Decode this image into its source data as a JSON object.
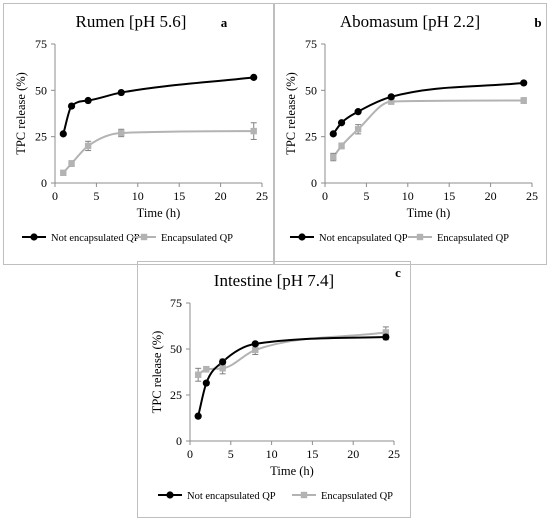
{
  "colors": {
    "not_encapsulated": "#000000",
    "encapsulated": "#b3b3b3",
    "error_bar": "#808080",
    "axis": "#8c8c8c",
    "frame": "#bfbfbf"
  },
  "chart_data": [
    {
      "type": "line",
      "title": "Rumen [pH 5.6]",
      "panel_label": "a",
      "xlabel": "Time (h)",
      "ylabel": "TPC release (%)",
      "xlim": [
        0,
        25
      ],
      "ylim": [
        0,
        75
      ],
      "x_ticks": [
        0,
        5,
        10,
        15,
        20,
        25
      ],
      "y_ticks": [
        0,
        25,
        50,
        75
      ],
      "grid": false,
      "legend_position": "bottom",
      "series": [
        {
          "name": "Not encapsulated QP",
          "x": [
            1,
            2,
            4,
            8,
            24
          ],
          "y": [
            26.5,
            41.5,
            44.5,
            48.8,
            57
          ],
          "error": [
            0,
            0,
            0,
            0,
            0
          ]
        },
        {
          "name": "Encapsulated QP",
          "x": [
            1,
            2,
            4,
            8,
            24
          ],
          "y": [
            5.5,
            10.5,
            20,
            27,
            28
          ],
          "error": [
            0,
            1.5,
            2.5,
            2,
            4.5
          ]
        }
      ]
    },
    {
      "type": "line",
      "title": "Abomasum [pH 2.2]",
      "panel_label": "b",
      "xlabel": "Time (h)",
      "ylabel": "TPC release (%)",
      "xlim": [
        0,
        25
      ],
      "ylim": [
        0,
        75
      ],
      "x_ticks": [
        0,
        5,
        10,
        15,
        20,
        25
      ],
      "y_ticks": [
        0,
        25,
        50,
        75
      ],
      "grid": false,
      "legend_position": "bottom",
      "series": [
        {
          "name": "Not encapsulated QP",
          "x": [
            1,
            2,
            4,
            8,
            24
          ],
          "y": [
            26.5,
            32.5,
            38.5,
            46.5,
            54
          ],
          "error": [
            0,
            0,
            0,
            0,
            0
          ]
        },
        {
          "name": "Encapsulated QP",
          "x": [
            1,
            2,
            4,
            8,
            24
          ],
          "y": [
            14,
            20,
            29,
            44,
            44.5
          ],
          "error": [
            2,
            1.5,
            2.5,
            1.5,
            1.5
          ]
        }
      ]
    },
    {
      "type": "line",
      "title": "Intestine [pH 7.4]",
      "panel_label": "c",
      "xlabel": "Time (h)",
      "ylabel": "TPC release (%)",
      "xlim": [
        0,
        25
      ],
      "ylim": [
        0,
        75
      ],
      "x_ticks": [
        0,
        5,
        10,
        15,
        20,
        25
      ],
      "y_ticks": [
        0,
        25,
        50,
        75
      ],
      "grid": false,
      "legend_position": "bottom",
      "series": [
        {
          "name": "Not encapsulated QP",
          "x": [
            1,
            2,
            4,
            8,
            24
          ],
          "y": [
            13.5,
            31.5,
            43,
            52.8,
            56.5
          ],
          "error": [
            0,
            0,
            1.5,
            0,
            1.5
          ]
        },
        {
          "name": "Encapsulated QP",
          "x": [
            1,
            2,
            4,
            8,
            24
          ],
          "y": [
            36,
            39,
            39.5,
            49.5,
            59
          ],
          "error": [
            3.5,
            1.5,
            3,
            2.5,
            3
          ]
        }
      ]
    }
  ]
}
